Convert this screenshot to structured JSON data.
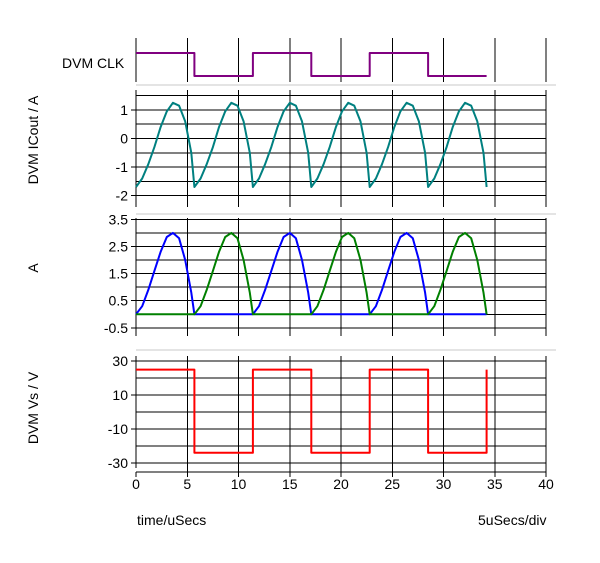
{
  "footer": {
    "x_axis_label": "time/uSecs",
    "scale_label": "5uSecs/div"
  },
  "chart_data": {
    "type": "line",
    "x_axis": {
      "label": "time/uSecs",
      "range": [
        0,
        40
      ],
      "ticks": [
        0,
        5,
        10,
        15,
        20,
        25,
        30,
        35,
        40
      ],
      "tick_labels": [
        "0",
        "5",
        "10",
        "15",
        "20",
        "25",
        "30",
        "35",
        "40"
      ]
    },
    "grid": true,
    "panels": [
      {
        "ylabel": "DVM CLK",
        "ylim": [
          0,
          1
        ],
        "ticks": [],
        "tick_labels": [],
        "series": [
          {
            "name": "DVM CLK",
            "color": "#800080",
            "x": [
              0,
              5.7,
              5.7,
              11.4,
              11.4,
              17.1,
              17.1,
              22.8,
              22.8,
              28.5,
              28.5,
              34.2
            ],
            "y": [
              1,
              1,
              0,
              0,
              1,
              1,
              0,
              0,
              1,
              1,
              0,
              0
            ]
          }
        ]
      },
      {
        "ylabel": "DVM ICout / A",
        "ylim": [
          -2.4,
          1.7
        ],
        "ticks": [
          1,
          0,
          -1,
          -2
        ],
        "tick_labels": [
          "1",
          "0",
          "-1",
          "-2"
        ],
        "series": [
          {
            "name": "DVM ICout",
            "color": "#008080",
            "x": [
              0,
              0.6,
              1.2,
              1.8,
              2.4,
              3.0,
              3.6,
              4.2,
              4.8,
              5.4,
              5.7,
              6.3,
              6.9,
              7.5,
              8.1,
              8.7,
              9.3,
              9.9,
              10.5,
              11.1,
              11.4,
              12.0,
              12.6,
              13.2,
              13.8,
              14.4,
              15.0,
              15.6,
              16.2,
              16.8,
              17.1,
              17.7,
              18.3,
              18.9,
              19.5,
              20.1,
              20.7,
              21.3,
              21.9,
              22.5,
              22.8,
              23.4,
              24.0,
              24.6,
              25.2,
              25.8,
              26.4,
              27.0,
              27.6,
              28.2,
              28.5,
              29.1,
              29.7,
              30.3,
              30.9,
              31.5,
              32.1,
              32.7,
              33.3,
              33.9,
              34.2
            ],
            "y": [
              -1.7,
              -1.4,
              -0.9,
              -0.3,
              0.4,
              0.95,
              1.25,
              1.15,
              0.6,
              -0.5,
              -1.7,
              -1.4,
              -0.9,
              -0.3,
              0.4,
              0.95,
              1.25,
              1.15,
              0.6,
              -0.5,
              -1.7,
              -1.4,
              -0.9,
              -0.3,
              0.4,
              0.95,
              1.25,
              1.15,
              0.6,
              -0.5,
              -1.7,
              -1.4,
              -0.9,
              -0.3,
              0.4,
              0.95,
              1.25,
              1.15,
              0.6,
              -0.5,
              -1.7,
              -1.4,
              -0.9,
              -0.3,
              0.4,
              0.95,
              1.25,
              1.15,
              0.6,
              -0.5,
              -1.7,
              -1.4,
              -0.9,
              -0.3,
              0.4,
              0.95,
              1.25,
              1.15,
              0.6,
              -0.5,
              -1.7
            ]
          }
        ]
      },
      {
        "ylabel": "A",
        "ylim": [
          -0.8,
          3.55
        ],
        "ticks": [
          3.5,
          2.5,
          1.5,
          0.5,
          -0.5
        ],
        "tick_labels": [
          "3.5",
          "2.5",
          "1.5",
          "0.5",
          "-0.5"
        ],
        "series": [
          {
            "name": "blue",
            "color": "#0000ff",
            "x": [
              0,
              0.6,
              1.2,
              1.8,
              2.4,
              3.0,
              3.6,
              4.2,
              4.8,
              5.4,
              5.7,
              11.4,
              12.0,
              12.6,
              13.2,
              13.8,
              14.4,
              15.0,
              15.6,
              16.2,
              16.8,
              17.1,
              22.8,
              23.4,
              24.0,
              24.6,
              25.2,
              25.8,
              26.4,
              27.0,
              27.6,
              28.2,
              28.5,
              34.2
            ],
            "y": [
              0,
              0.3,
              0.9,
              1.6,
              2.3,
              2.85,
              3.0,
              2.8,
              2.0,
              0.8,
              0,
              0,
              0.3,
              0.9,
              1.6,
              2.3,
              2.85,
              3.0,
              2.8,
              2.0,
              0.8,
              0,
              0,
              0.3,
              0.9,
              1.6,
              2.3,
              2.85,
              3.0,
              2.8,
              2.0,
              0.8,
              0,
              0
            ]
          },
          {
            "name": "green",
            "color": "#008000",
            "x": [
              0,
              5.7,
              6.3,
              6.9,
              7.5,
              8.1,
              8.7,
              9.3,
              9.9,
              10.5,
              11.1,
              11.4,
              17.1,
              17.7,
              18.3,
              18.9,
              19.5,
              20.1,
              20.7,
              21.3,
              21.9,
              22.5,
              22.8,
              28.5,
              29.1,
              29.7,
              30.3,
              30.9,
              31.5,
              32.1,
              32.7,
              33.3,
              33.9,
              34.2
            ],
            "y": [
              0,
              0,
              0.3,
              0.9,
              1.6,
              2.3,
              2.85,
              3.0,
              2.8,
              2.0,
              0.8,
              0,
              0,
              0.3,
              0.9,
              1.6,
              2.3,
              2.85,
              3.0,
              2.8,
              2.0,
              0.8,
              0,
              0,
              0.3,
              0.9,
              1.6,
              2.3,
              2.85,
              3.0,
              2.8,
              2.0,
              0.8,
              0
            ]
          }
        ]
      },
      {
        "ylabel": "DVM Vs / V",
        "ylim": [
          -33,
          33
        ],
        "ticks": [
          30,
          10,
          -10,
          -30
        ],
        "tick_labels": [
          "30",
          "10",
          "-10",
          "-30"
        ],
        "series": [
          {
            "name": "DVM Vs",
            "color": "#ff0000",
            "x": [
              0,
              5.7,
              5.7,
              11.4,
              11.4,
              17.1,
              17.1,
              22.8,
              22.8,
              28.5,
              28.5,
              34.2,
              34.2
            ],
            "y": [
              25,
              25,
              -24,
              -24,
              25,
              25,
              -24,
              -24,
              25,
              25,
              -24,
              -24,
              25
            ]
          }
        ]
      }
    ]
  }
}
